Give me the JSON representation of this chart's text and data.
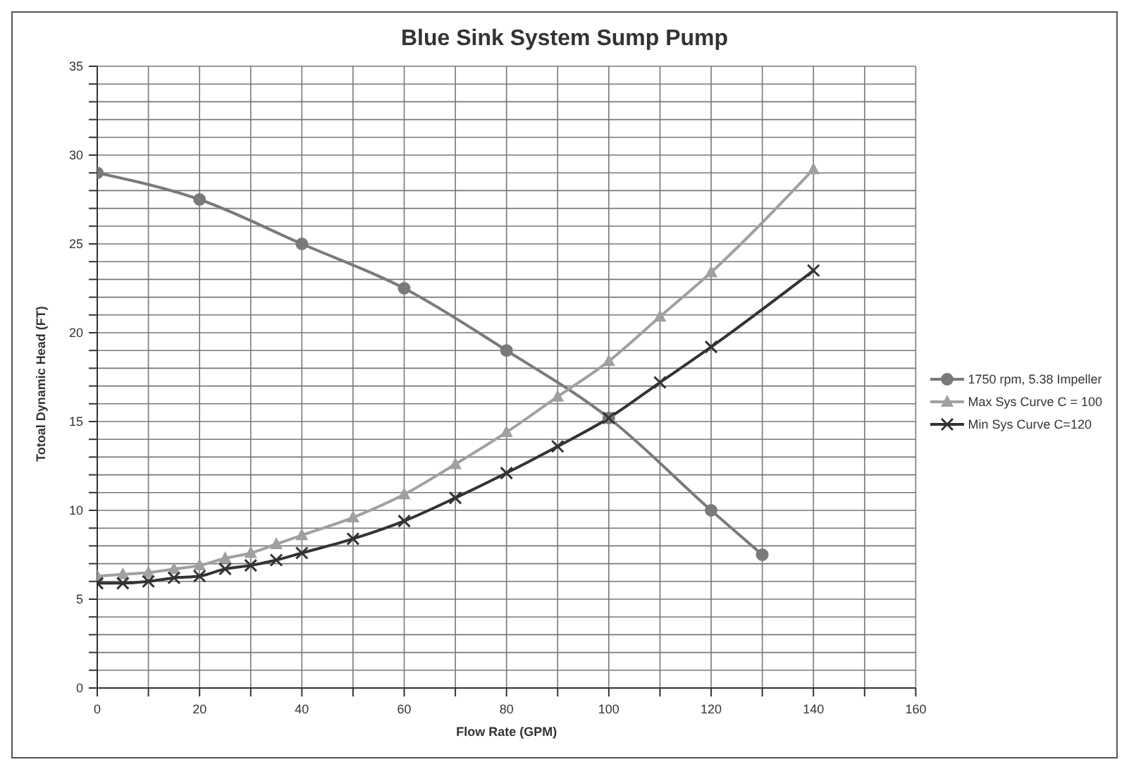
{
  "chart_data": {
    "type": "line",
    "title": "Blue Sink System Sump Pump",
    "xlabel": "Flow Rate (GPM)",
    "ylabel": "Totoal Dynamic Head (FT)",
    "xlim": [
      0,
      160
    ],
    "ylim": [
      0,
      35
    ],
    "xticks": [
      0,
      {
        "value": 10,
        "label": null
      },
      20,
      {
        "value": 30,
        "label": null
      },
      40,
      {
        "value": 50,
        "label": null
      },
      60,
      {
        "value": 70,
        "label": null
      },
      80,
      {
        "value": 90,
        "label": null
      },
      100,
      {
        "value": 110,
        "label": null
      },
      120,
      {
        "value": 130,
        "label": null
      },
      140,
      {
        "value": 150,
        "label": null
      },
      160
    ],
    "yticks": [
      0,
      {
        "value": 1,
        "label": null
      },
      {
        "value": 2,
        "label": null
      },
      {
        "value": 3,
        "label": null
      },
      {
        "value": 4,
        "label": null
      },
      5,
      {
        "value": 6,
        "label": null
      },
      {
        "value": 7,
        "label": null
      },
      {
        "value": 8,
        "label": null
      },
      {
        "value": 9,
        "label": null
      },
      10,
      {
        "value": 11,
        "label": null
      },
      {
        "value": 12,
        "label": null
      },
      {
        "value": 13,
        "label": null
      },
      {
        "value": 14,
        "label": null
      },
      15,
      {
        "value": 16,
        "label": null
      },
      {
        "value": 17,
        "label": null
      },
      {
        "value": 18,
        "label": null
      },
      {
        "value": 19,
        "label": null
      },
      20,
      {
        "value": 21,
        "label": null
      },
      {
        "value": 22,
        "label": null
      },
      {
        "value": 23,
        "label": null
      },
      {
        "value": 24,
        "label": null
      },
      25,
      {
        "value": 26,
        "label": null
      },
      {
        "value": 27,
        "label": null
      },
      {
        "value": 28,
        "label": null
      },
      {
        "value": 29,
        "label": null
      },
      30,
      {
        "value": 31,
        "label": null
      },
      {
        "value": 32,
        "label": null
      },
      {
        "value": 33,
        "label": null
      },
      {
        "value": 34,
        "label": null
      },
      35
    ],
    "grid": true,
    "legend": "right",
    "series": [
      {
        "name": "1750 rpm, 5.38 Impeller",
        "color": "#7a7a7a",
        "marker": "circle",
        "x": [
          0,
          20,
          40,
          60,
          80,
          100,
          120,
          130
        ],
        "values": [
          29,
          27.5,
          25,
          22.5,
          19,
          15.2,
          10,
          7.5
        ]
      },
      {
        "name": "Max Sys Curve C = 100",
        "color": "#a0a0a0",
        "marker": "triangle",
        "x": [
          0,
          5,
          10,
          15,
          20,
          25,
          30,
          35,
          40,
          50,
          60,
          70,
          80,
          90,
          100,
          110,
          120,
          140
        ],
        "values": [
          6.3,
          6.4,
          6.5,
          6.7,
          6.9,
          7.3,
          7.6,
          8.1,
          8.6,
          9.6,
          10.9,
          12.6,
          14.4,
          16.4,
          18.4,
          20.9,
          23.4,
          29.2
        ]
      },
      {
        "name": "Min Sys Curve C=120",
        "color": "#333333",
        "marker": "cross",
        "x": [
          0,
          5,
          10,
          15,
          20,
          25,
          30,
          35,
          40,
          50,
          60,
          70,
          80,
          90,
          100,
          110,
          120,
          140
        ],
        "values": [
          5.9,
          5.9,
          6.0,
          6.2,
          6.3,
          6.7,
          6.9,
          7.2,
          7.6,
          8.4,
          9.4,
          10.7,
          12.1,
          13.6,
          15.2,
          17.2,
          19.2,
          23.5
        ]
      }
    ]
  }
}
